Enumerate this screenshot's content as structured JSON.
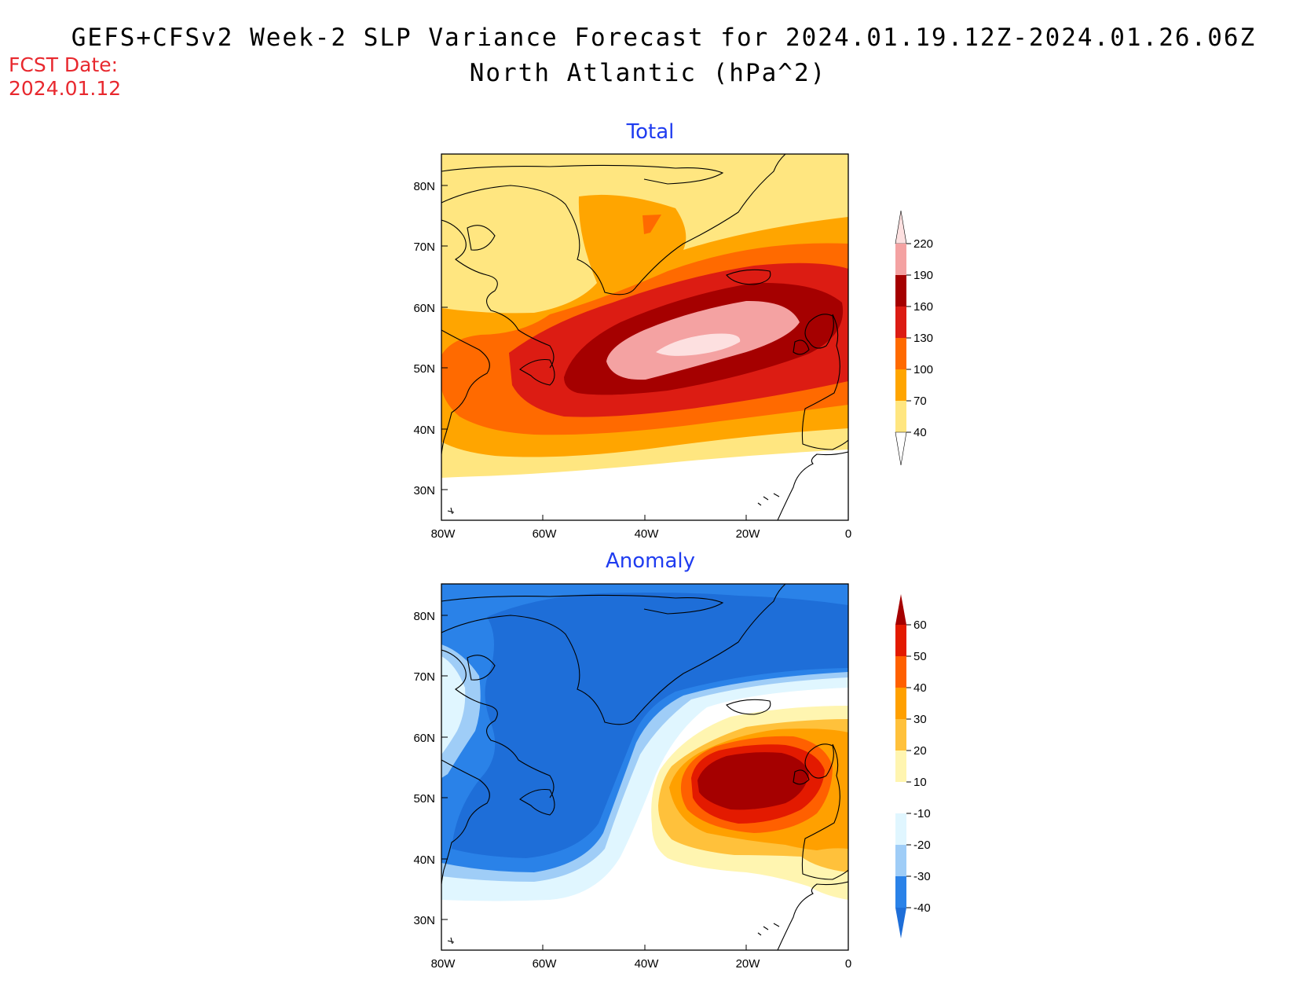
{
  "header": {
    "title_line1": "GEFS+CFSv2 Week-2 SLP Variance Forecast for 2024.01.19.12Z-2024.01.26.06Z",
    "title_line2": "North Atlantic (hPa^2)",
    "fcst_label": "FCST Date:",
    "fcst_value": "2024.01.12"
  },
  "map_axes": {
    "lat_ticks": [
      "30N",
      "40N",
      "50N",
      "60N",
      "70N",
      "80N"
    ],
    "lon_ticks": [
      "80W",
      "60W",
      "40W",
      "20W",
      "0"
    ],
    "lon_range": [
      -80,
      0
    ],
    "lat_range": [
      25,
      85
    ]
  },
  "panels": [
    {
      "id": "total",
      "title": "Total",
      "colorbar": {
        "levels": [
          "40",
          "70",
          "100",
          "130",
          "160",
          "190",
          "220"
        ],
        "colors": [
          "#ffe680",
          "#ffa500",
          "#ff6a00",
          "#dc1c13",
          "#a50000",
          "#f4a2a2",
          "#fde0e0"
        ]
      }
    },
    {
      "id": "anomaly",
      "title": "Anomaly",
      "colorbar": {
        "levels": [
          "-40",
          "-30",
          "-20",
          "-10",
          "10",
          "20",
          "30",
          "40",
          "50",
          "60"
        ],
        "colors": [
          "#1e6ed8",
          "#2a82e8",
          "#9fcdf7",
          "#e0f6ff",
          "#ffffff",
          "#fff5b0",
          "#ffc13b",
          "#ffa000",
          "#ff6000",
          "#e31a00",
          "#a50000"
        ]
      }
    }
  ]
}
